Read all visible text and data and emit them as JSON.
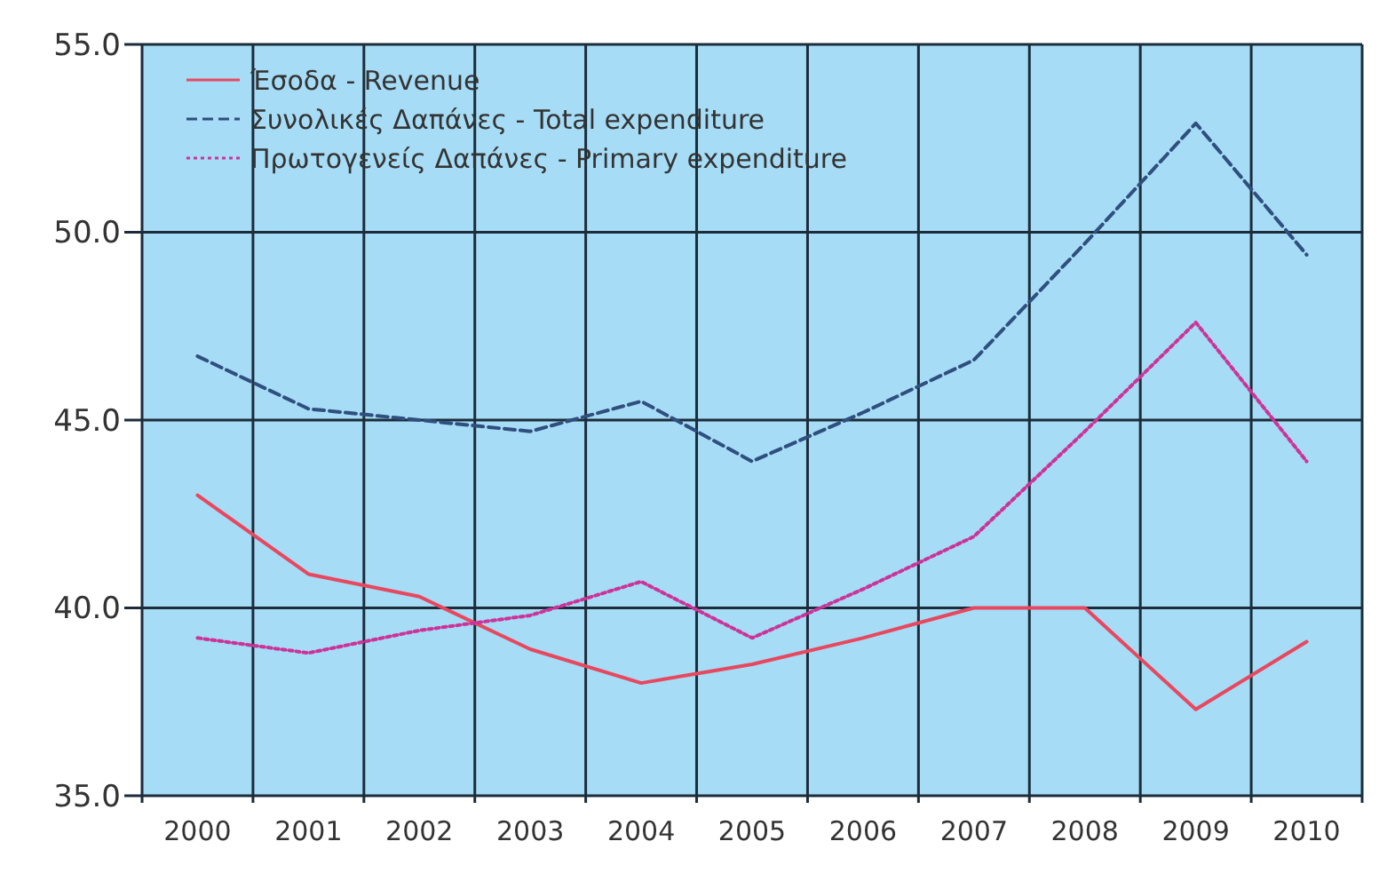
{
  "chart_data": {
    "type": "line",
    "categories": [
      "2000",
      "2001",
      "2002",
      "2003",
      "2004",
      "2005",
      "2006",
      "2007",
      "2008",
      "2009",
      "2010"
    ],
    "series": [
      {
        "name": "Έσοδα - Revenue",
        "color": "#e8485f",
        "line_style": "solid",
        "values": [
          43.0,
          40.9,
          40.3,
          38.9,
          38.0,
          38.5,
          39.2,
          40.0,
          40.0,
          37.3,
          39.1
        ]
      },
      {
        "name": "Συνολικές Δαπάνες - Total expenditure",
        "color": "#2f4f7f",
        "line_style": "dashed",
        "values": [
          46.7,
          45.3,
          45.0,
          44.7,
          45.5,
          43.9,
          45.2,
          46.6,
          49.7,
          52.9,
          49.4
        ]
      },
      {
        "name": "Πρωτογενείς Δαπάνες - Primary expenditure",
        "color": "#cc3399",
        "line_style": "dotted",
        "values": [
          39.2,
          38.8,
          39.4,
          39.8,
          40.7,
          39.2,
          40.5,
          41.9,
          44.7,
          47.6,
          43.9
        ]
      }
    ],
    "ylim": [
      35,
      55
    ],
    "yticks": [
      {
        "value": 35,
        "label": "35.0"
      },
      {
        "value": 40,
        "label": "40.0"
      },
      {
        "value": 45,
        "label": "45.0"
      },
      {
        "value": 50,
        "label": "50.0"
      },
      {
        "value": 55,
        "label": "55.0"
      }
    ],
    "grid": true,
    "legend": "top left"
  }
}
